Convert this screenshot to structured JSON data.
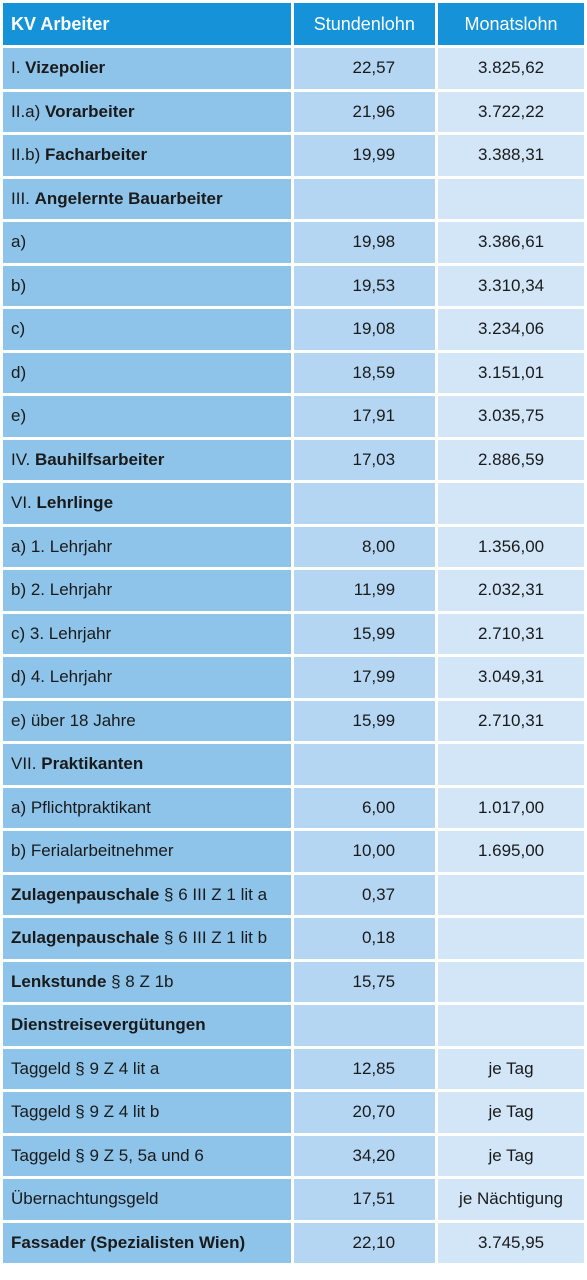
{
  "header": {
    "title": "KV Arbeiter",
    "col_hourly": "Stundenlohn",
    "col_monthly": "Monatslohn"
  },
  "rows": [
    {
      "pre": "I. ",
      "bold": "Vizepolier",
      "post": "",
      "hourly": "22,57",
      "monthly": "3.825,62"
    },
    {
      "pre": "II.a) ",
      "bold": "Vorarbeiter",
      "post": "",
      "hourly": "21,96",
      "monthly": "3.722,22"
    },
    {
      "pre": "II.b) ",
      "bold": "Facharbeiter",
      "post": "",
      "hourly": "19,99",
      "monthly": "3.388,31"
    },
    {
      "pre": "III. ",
      "bold": "Angelernte Bauarbeiter",
      "post": "",
      "hourly": "",
      "monthly": ""
    },
    {
      "pre": "a)",
      "bold": "",
      "post": "",
      "hourly": "19,98",
      "monthly": "3.386,61"
    },
    {
      "pre": "b)",
      "bold": "",
      "post": "",
      "hourly": "19,53",
      "monthly": "3.310,34"
    },
    {
      "pre": "c)",
      "bold": "",
      "post": "",
      "hourly": "19,08",
      "monthly": "3.234,06"
    },
    {
      "pre": "d)",
      "bold": "",
      "post": "",
      "hourly": "18,59",
      "monthly": "3.151,01"
    },
    {
      "pre": "e)",
      "bold": "",
      "post": "",
      "hourly": "17,91",
      "monthly": "3.035,75"
    },
    {
      "pre": "IV. ",
      "bold": "Bauhilfsarbeiter",
      "post": "",
      "hourly": "17,03",
      "monthly": "2.886,59"
    },
    {
      "pre": "VI. ",
      "bold": "Lehrlinge",
      "post": "",
      "hourly": "",
      "monthly": ""
    },
    {
      "pre": "a) 1. Lehrjahr",
      "bold": "",
      "post": "",
      "hourly": "8,00",
      "monthly": "1.356,00"
    },
    {
      "pre": "b) 2. Lehrjahr",
      "bold": "",
      "post": "",
      "hourly": "11,99",
      "monthly": "2.032,31"
    },
    {
      "pre": "c) 3. Lehrjahr",
      "bold": "",
      "post": "",
      "hourly": "15,99",
      "monthly": "2.710,31"
    },
    {
      "pre": "d) 4. Lehrjahr",
      "bold": "",
      "post": "",
      "hourly": "17,99",
      "monthly": "3.049,31"
    },
    {
      "pre": "e) über 18 Jahre",
      "bold": "",
      "post": "",
      "hourly": "15,99",
      "monthly": "2.710,31"
    },
    {
      "pre": "VII. ",
      "bold": "Praktikanten",
      "post": "",
      "hourly": "",
      "monthly": ""
    },
    {
      "pre": "a) Pflichtpraktikant",
      "bold": "",
      "post": "",
      "hourly": "6,00",
      "monthly": "1.017,00"
    },
    {
      "pre": "b) Ferialarbeitnehmer",
      "bold": "",
      "post": "",
      "hourly": "10,00",
      "monthly": "1.695,00"
    },
    {
      "pre": "",
      "bold": "Zulagenpauschale",
      "post": " § 6 III Z 1 lit a",
      "hourly": "0,37",
      "monthly": ""
    },
    {
      "pre": "",
      "bold": "Zulagenpauschale",
      "post": " § 6 III Z 1 lit b",
      "hourly": "0,18",
      "monthly": ""
    },
    {
      "pre": "",
      "bold": "Lenkstunde",
      "post": " § 8 Z 1b",
      "hourly": "15,75",
      "monthly": ""
    },
    {
      "pre": "",
      "bold": "Dienstreisevergütungen",
      "post": "",
      "hourly": "",
      "monthly": ""
    },
    {
      "pre": "Taggeld § 9 Z 4 lit a",
      "bold": "",
      "post": "",
      "hourly": "12,85",
      "monthly": "je Tag"
    },
    {
      "pre": "Taggeld § 9 Z 4 lit b",
      "bold": "",
      "post": "",
      "hourly": "20,70",
      "monthly": "je Tag"
    },
    {
      "pre": "Taggeld § 9 Z 5, 5a und 6",
      "bold": "",
      "post": "",
      "hourly": "34,20",
      "monthly": "je Tag"
    },
    {
      "pre": "Übernachtungsgeld",
      "bold": "",
      "post": "",
      "hourly": "17,51",
      "monthly": "je Nächtigung"
    },
    {
      "pre": "",
      "bold": "Fassader (Spezialisten Wien)",
      "post": "",
      "hourly": "22,10",
      "monthly": "3.745,95"
    }
  ]
}
